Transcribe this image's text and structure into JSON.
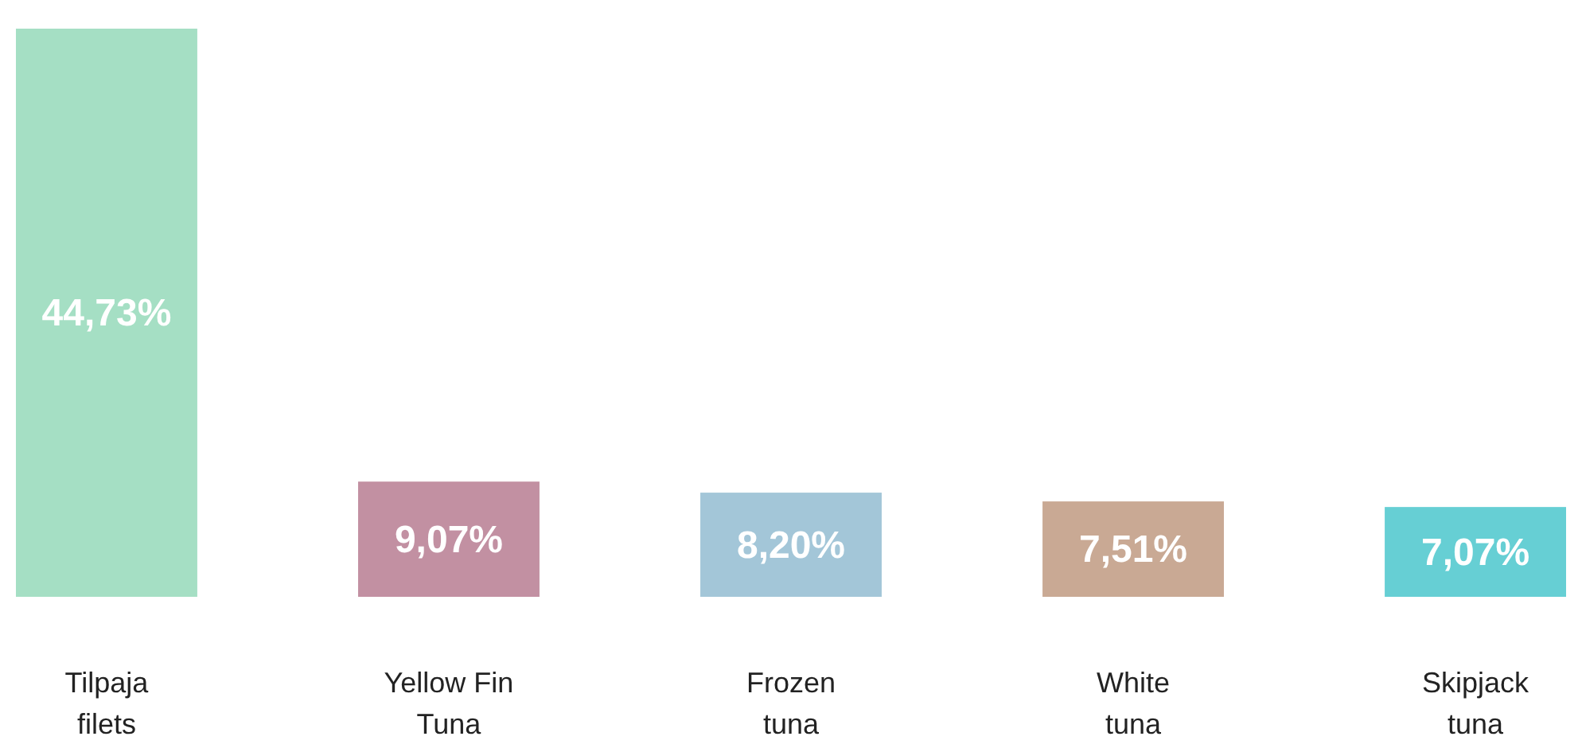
{
  "chart_data": {
    "type": "bar",
    "categories": [
      "Tilpaja filets",
      "Yellow Fin Tuna",
      "Frozen tuna",
      "White tuna",
      "Skipjack tuna"
    ],
    "values": [
      44.73,
      9.07,
      8.2,
      7.51,
      7.07
    ],
    "colors": [
      "#a5dfc4",
      "#c290a2",
      "#a3c6d8",
      "#c9a994",
      "#66cfd4"
    ],
    "value_labels": [
      "44,73%",
      "9,07%",
      "8,20%",
      "7,51%",
      "7,07%"
    ]
  }
}
